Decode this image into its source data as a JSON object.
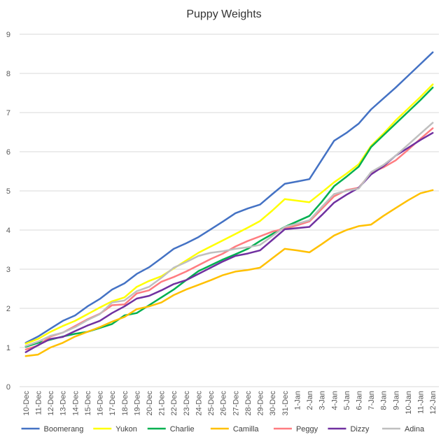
{
  "chart_data": {
    "type": "line",
    "title": "Puppy Weights",
    "xlabel": "",
    "ylabel": "",
    "ylim": [
      0,
      9
    ],
    "yticks": [
      0,
      1,
      2,
      3,
      4,
      5,
      6,
      7,
      8,
      9
    ],
    "grid": true,
    "legend": "bottom",
    "categories": [
      "10-Dec",
      "11-Dec",
      "12-Dec",
      "13-Dec",
      "14-Dec",
      "15-Dec",
      "16-Dec",
      "17-Dec",
      "18-Dec",
      "19-Dec",
      "20-Dec",
      "21-Dec",
      "22-Dec",
      "23-Dec",
      "24-Dec",
      "25-Dec",
      "26-Dec",
      "27-Dec",
      "28-Dec",
      "29-Dec",
      "30-Dec",
      "31-Dec",
      "1-Jan",
      "2-Jan",
      "3-Jan",
      "4-Jan",
      "5-Jan",
      "6-Jan",
      "7-Jan",
      "8-Jan",
      "9-Jan",
      "10-Jan",
      "11-Jan",
      "12-Jan"
    ],
    "series": [
      {
        "name": "Boomerang",
        "color": "#4472C4",
        "values": [
          1.12,
          1.28,
          1.48,
          1.68,
          1.82,
          2.05,
          2.24,
          2.48,
          2.64,
          2.88,
          3.05,
          3.28,
          3.52,
          3.66,
          3.82,
          4.02,
          4.22,
          4.43,
          4.55,
          4.65,
          4.92,
          5.18,
          5.24,
          5.3,
          5.79,
          6.28,
          6.48,
          6.72,
          7.08,
          7.36,
          7.64,
          7.94,
          8.24,
          8.54
        ]
      },
      {
        "name": "Yukon",
        "color": "#FFFF00",
        "values": [
          1.1,
          1.22,
          1.4,
          1.55,
          1.68,
          1.85,
          2.02,
          2.18,
          2.28,
          2.55,
          2.7,
          2.82,
          3.02,
          3.22,
          3.42,
          3.58,
          3.74,
          3.9,
          4.06,
          4.23,
          4.5,
          4.79,
          4.75,
          4.71,
          4.96,
          5.22,
          5.44,
          5.68,
          6.15,
          6.46,
          6.8,
          7.1,
          7.4,
          7.72
        ]
      },
      {
        "name": "Charlie",
        "color": "#00B050",
        "values": [
          1.02,
          1.12,
          1.2,
          1.28,
          1.35,
          1.4,
          1.5,
          1.6,
          1.82,
          1.88,
          2.08,
          2.28,
          2.48,
          2.72,
          2.95,
          3.1,
          3.25,
          3.38,
          3.52,
          3.72,
          3.9,
          4.08,
          4.22,
          4.36,
          4.72,
          5.12,
          5.36,
          5.62,
          6.12,
          6.42,
          6.72,
          7.02,
          7.32,
          7.64
        ]
      },
      {
        "name": "Camilla",
        "color": "#FFC000",
        "values": [
          0.78,
          0.82,
          1.0,
          1.12,
          1.28,
          1.4,
          1.52,
          1.66,
          1.78,
          1.98,
          2.05,
          2.15,
          2.34,
          2.48,
          2.6,
          2.72,
          2.85,
          2.94,
          2.98,
          3.04,
          3.28,
          3.52,
          3.48,
          3.43,
          3.64,
          3.86,
          4.0,
          4.1,
          4.14,
          4.36,
          4.56,
          4.76,
          4.94,
          5.02
        ]
      },
      {
        "name": "Peggy",
        "color": "#FF7C80",
        "values": [
          0.95,
          1.05,
          1.28,
          1.38,
          1.55,
          1.72,
          1.86,
          2.08,
          2.1,
          2.38,
          2.46,
          2.68,
          2.8,
          2.94,
          3.1,
          3.26,
          3.4,
          3.58,
          3.72,
          3.84,
          3.96,
          4.04,
          4.12,
          4.22,
          4.54,
          4.86,
          5.02,
          5.08,
          5.46,
          5.6,
          5.78,
          6.05,
          6.33,
          6.6
        ]
      },
      {
        "name": "Dizzy",
        "color": "#7030A0",
        "values": [
          0.88,
          1.06,
          1.22,
          1.27,
          1.42,
          1.56,
          1.68,
          1.88,
          2.05,
          2.25,
          2.32,
          2.46,
          2.62,
          2.72,
          2.88,
          3.04,
          3.2,
          3.34,
          3.4,
          3.48,
          3.75,
          4.02,
          4.05,
          4.08,
          4.38,
          4.7,
          4.9,
          5.08,
          5.42,
          5.63,
          5.9,
          6.1,
          6.3,
          6.48
        ]
      },
      {
        "name": "Adina",
        "color": "#BFBFBF",
        "values": [
          1.04,
          1.15,
          1.3,
          1.38,
          1.52,
          1.7,
          1.85,
          2.15,
          2.2,
          2.44,
          2.55,
          2.78,
          3.04,
          3.18,
          3.34,
          3.42,
          3.46,
          3.52,
          3.56,
          3.62,
          3.85,
          4.08,
          4.16,
          4.25,
          4.59,
          4.92,
          5.0,
          5.06,
          5.48,
          5.66,
          5.9,
          6.18,
          6.46,
          6.74
        ]
      }
    ]
  }
}
